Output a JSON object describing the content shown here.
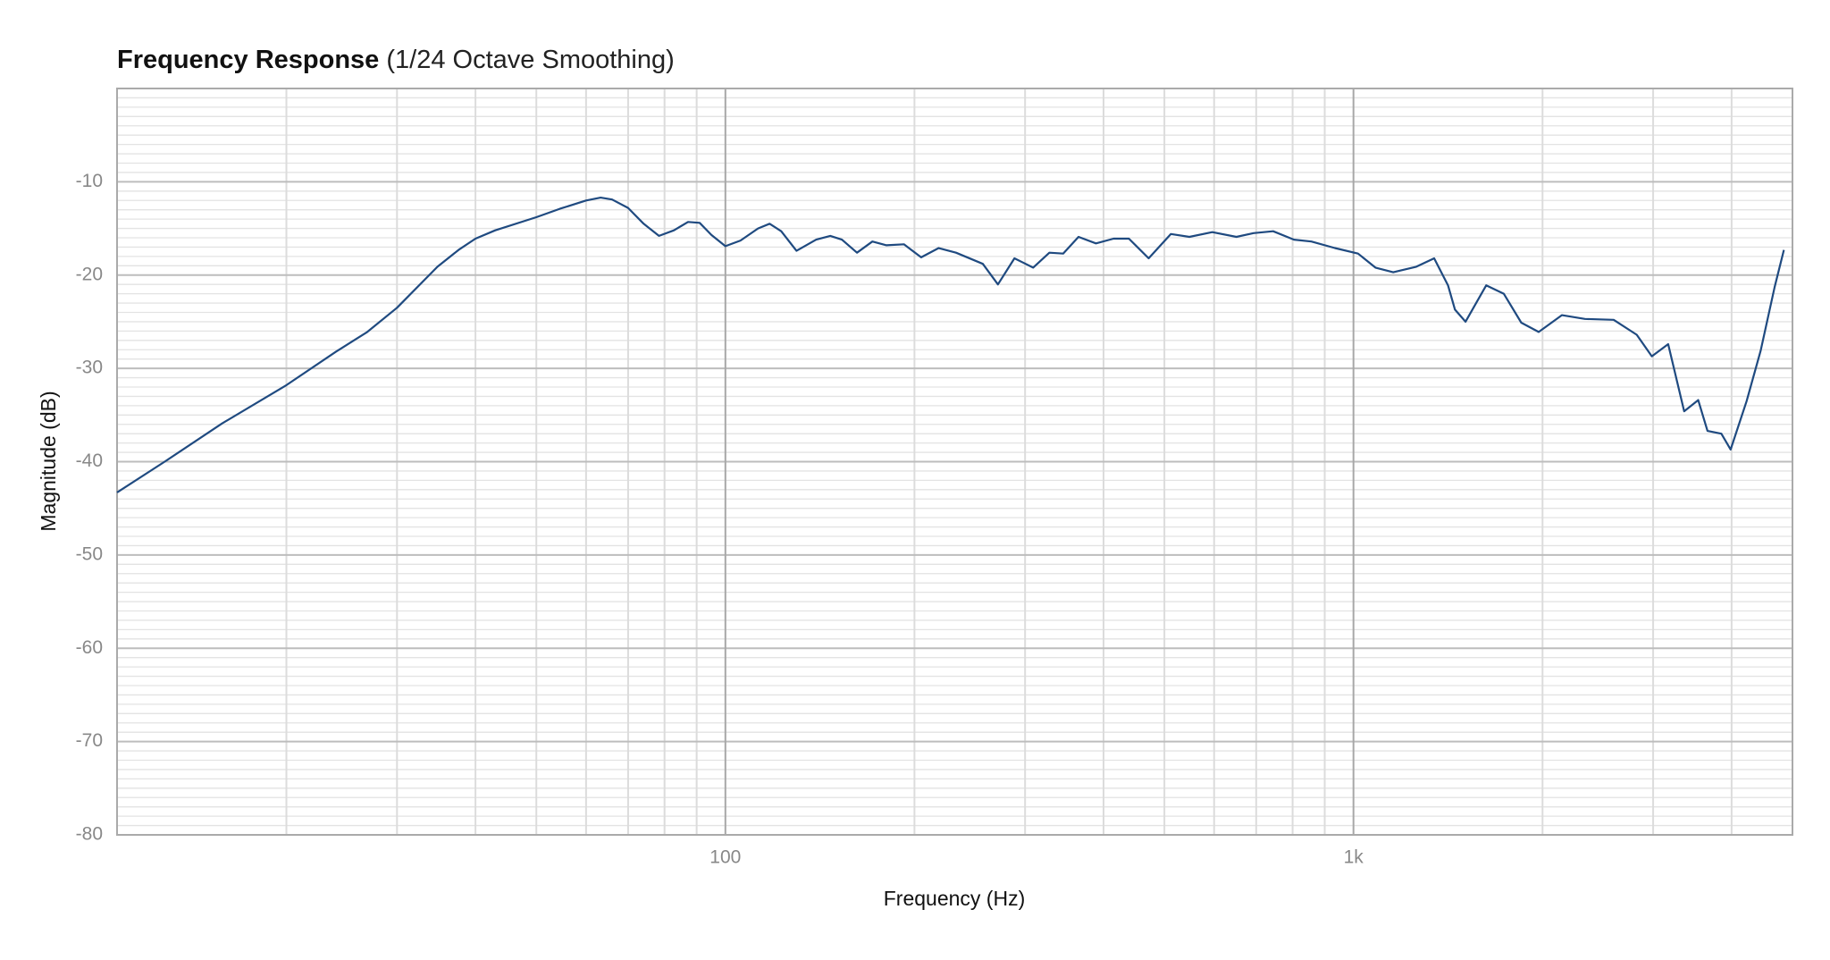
{
  "chart_data": {
    "type": "line",
    "title": "Frequency Response",
    "subtitle": "(1/24 Octave Smoothing)",
    "x_label": "Frequency (Hz)",
    "y_label": "Magnitude (dB)",
    "x": [
      10.75,
      12.8,
      15.8,
      20,
      24,
      26.9,
      30,
      34.8,
      37.6,
      40,
      43,
      50,
      54.5,
      60,
      63.3,
      66,
      70,
      74.1,
      78.4,
      82.8,
      87.2,
      91,
      95,
      100,
      105.7,
      112.7,
      117.6,
      122.7,
      129.8,
      139.5,
      146.9,
      153.3,
      162,
      171.4,
      180.5,
      192.4,
      205,
      218.6,
      232.9,
      257,
      271.6,
      288.6,
      309,
      328,
      345,
      365,
      389,
      415,
      439,
      472,
      512,
      548,
      596,
      651,
      693,
      745,
      804,
      857,
      934,
      1017,
      1084,
      1157,
      1259,
      1344,
      1414,
      1451,
      1508,
      1627,
      1735,
      1850,
      1972,
      2147,
      2336,
      2596,
      2825,
      2986,
      3170,
      3362,
      3539,
      3662,
      3852,
      3986,
      4227,
      4450,
      4683,
      4845
    ],
    "values": [
      -43.3,
      -40,
      -35.9,
      -31.8,
      -28.2,
      -26.1,
      -23.5,
      -19.1,
      -17.3,
      -16.1,
      -15.2,
      -13.8,
      -12.9,
      -12.0,
      -11.7,
      -11.9,
      -12.8,
      -14.5,
      -15.8,
      -15.2,
      -14.3,
      -14.4,
      -15.7,
      -16.9,
      -16.3,
      -15.0,
      -14.5,
      -15.3,
      -17.4,
      -16.2,
      -15.8,
      -16.2,
      -17.6,
      -16.4,
      -16.8,
      -16.7,
      -18.1,
      -17.1,
      -17.6,
      -18.8,
      -21.0,
      -18.2,
      -19.2,
      -17.6,
      -17.7,
      -15.9,
      -16.6,
      -16.1,
      -16.1,
      -18.2,
      -15.6,
      -15.9,
      -15.4,
      -15.9,
      -15.5,
      -15.3,
      -16.2,
      -16.4,
      -17.1,
      -17.7,
      -19.2,
      -19.7,
      -19.1,
      -18.2,
      -21.1,
      -23.7,
      -25.0,
      -21.1,
      -22.0,
      -25.1,
      -26.1,
      -24.3,
      -24.7,
      -24.8,
      -26.4,
      -28.7,
      -27.4,
      -34.6,
      -33.4,
      -36.7,
      -37.0,
      -38.7,
      -33.5,
      -28.1,
      -21.3,
      -17.3
    ],
    "color": "#1f4a80",
    "xscale": "log",
    "xlim": [
      10.75,
      5000
    ],
    "ylim": [
      -80,
      0
    ],
    "xticks": [
      100,
      {
        "value": 1000,
        "label": "1k"
      }
    ],
    "yticks": [
      -80,
      -70,
      -60,
      -50,
      -40,
      -30,
      -20,
      -10
    ],
    "xminor": [
      20,
      30,
      40,
      50,
      60,
      70,
      80,
      90,
      200,
      300,
      400,
      500,
      600,
      700,
      800,
      900,
      2000,
      3000,
      4000,
      5000
    ],
    "yminor_step": 1,
    "grid": true
  }
}
